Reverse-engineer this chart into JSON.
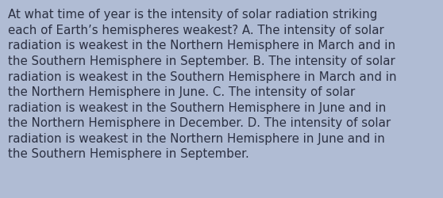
{
  "lines": [
    "At what time of year is the intensity of solar radiation striking",
    "each of Earth’s hemispheres weakest? A. The intensity of solar",
    "radiation is weakest in the Northern Hemisphere in March and in",
    "the Southern Hemisphere in September. B. The intensity of solar",
    "radiation is weakest in the Southern Hemisphere in March and in",
    "the Northern Hemisphere in June. C. The intensity of solar",
    "radiation is weakest in the Southern Hemisphere in June and in",
    "the Northern Hemisphere in December. D. The intensity of solar",
    "radiation is weakest in the Northern Hemisphere in June and in",
    "the Southern Hemisphere in September."
  ],
  "background_color": "#b0bcd4",
  "text_color": "#2b3042",
  "font_size": 10.8,
  "fig_width": 5.58,
  "fig_height": 2.51,
  "dpi": 100
}
